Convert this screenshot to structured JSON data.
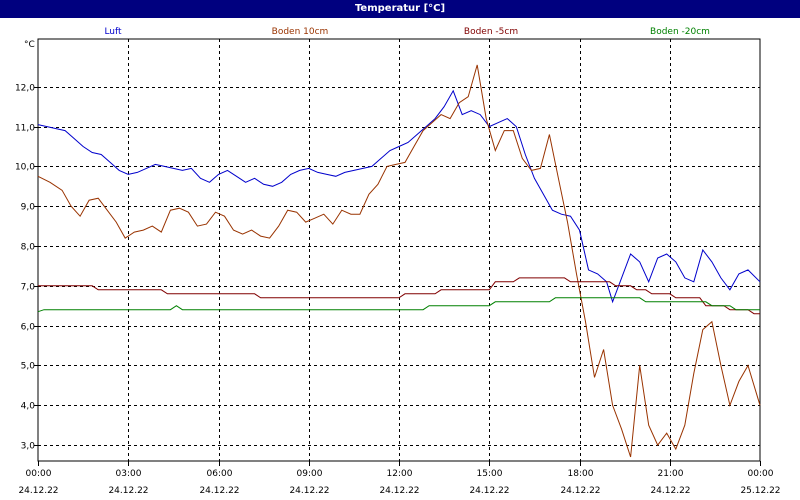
{
  "window": {
    "title": "Temperatur [°C]"
  },
  "chart_data": {
    "type": "line",
    "title": "Temperatur [°C]",
    "ylabel": "°C",
    "xlabel": "",
    "ylim": [
      2.6,
      13.2
    ],
    "xlim": [
      0,
      24
    ],
    "grid": true,
    "legend_placement": "top",
    "y_ticks": [
      {
        "value": 3.0,
        "label": "3,0"
      },
      {
        "value": 4.0,
        "label": "4,0"
      },
      {
        "value": 5.0,
        "label": "5,0"
      },
      {
        "value": 6.0,
        "label": "6,0"
      },
      {
        "value": 7.0,
        "label": "7,0"
      },
      {
        "value": 8.0,
        "label": "8,0"
      },
      {
        "value": 9.0,
        "label": "9,0"
      },
      {
        "value": 10.0,
        "label": "10,0"
      },
      {
        "value": 11.0,
        "label": "11,0"
      },
      {
        "value": 12.0,
        "label": "12,0"
      }
    ],
    "x_ticks": [
      {
        "value": 0,
        "time": "00:00",
        "date": "24.12.22"
      },
      {
        "value": 3,
        "time": "03:00",
        "date": "24.12.22"
      },
      {
        "value": 6,
        "time": "06:00",
        "date": "24.12.22"
      },
      {
        "value": 9,
        "time": "09:00",
        "date": "24.12.22"
      },
      {
        "value": 12,
        "time": "12:00",
        "date": "24.12.22"
      },
      {
        "value": 15,
        "time": "15:00",
        "date": "24.12.22"
      },
      {
        "value": 18,
        "time": "18:00",
        "date": "24.12.22"
      },
      {
        "value": 21,
        "time": "21:00",
        "date": "24.12.22"
      },
      {
        "value": 24,
        "time": "00:00",
        "date": "25.12.22"
      }
    ],
    "series": [
      {
        "name": "Luft",
        "color": "#0000cc",
        "points": [
          [
            0,
            11.05
          ],
          [
            0.3,
            11.0
          ],
          [
            0.6,
            10.95
          ],
          [
            0.9,
            10.9
          ],
          [
            1.2,
            10.7
          ],
          [
            1.5,
            10.5
          ],
          [
            1.8,
            10.35
          ],
          [
            2.1,
            10.3
          ],
          [
            2.4,
            10.1
          ],
          [
            2.7,
            9.9
          ],
          [
            3.0,
            9.8
          ],
          [
            3.3,
            9.85
          ],
          [
            3.6,
            9.95
          ],
          [
            3.9,
            10.05
          ],
          [
            4.2,
            10.0
          ],
          [
            4.5,
            9.95
          ],
          [
            4.8,
            9.9
          ],
          [
            5.1,
            9.95
          ],
          [
            5.4,
            9.7
          ],
          [
            5.7,
            9.6
          ],
          [
            6.0,
            9.8
          ],
          [
            6.3,
            9.9
          ],
          [
            6.6,
            9.75
          ],
          [
            6.9,
            9.6
          ],
          [
            7.2,
            9.7
          ],
          [
            7.5,
            9.55
          ],
          [
            7.8,
            9.5
          ],
          [
            8.1,
            9.6
          ],
          [
            8.4,
            9.8
          ],
          [
            8.7,
            9.9
          ],
          [
            9.0,
            9.95
          ],
          [
            9.3,
            9.85
          ],
          [
            9.6,
            9.8
          ],
          [
            9.9,
            9.75
          ],
          [
            10.2,
            9.85
          ],
          [
            10.5,
            9.9
          ],
          [
            10.8,
            9.95
          ],
          [
            11.1,
            10.0
          ],
          [
            11.4,
            10.2
          ],
          [
            11.7,
            10.4
          ],
          [
            12.0,
            10.5
          ],
          [
            12.3,
            10.6
          ],
          [
            12.6,
            10.8
          ],
          [
            12.9,
            11.0
          ],
          [
            13.2,
            11.2
          ],
          [
            13.5,
            11.5
          ],
          [
            13.8,
            11.9
          ],
          [
            14.1,
            11.3
          ],
          [
            14.4,
            11.4
          ],
          [
            14.7,
            11.3
          ],
          [
            15.0,
            11.0
          ],
          [
            15.3,
            11.1
          ],
          [
            15.6,
            11.2
          ],
          [
            15.9,
            11.0
          ],
          [
            16.2,
            10.3
          ],
          [
            16.5,
            9.7
          ],
          [
            16.8,
            9.3
          ],
          [
            17.1,
            8.9
          ],
          [
            17.4,
            8.8
          ],
          [
            17.7,
            8.75
          ],
          [
            18.0,
            8.4
          ],
          [
            18.3,
            7.4
          ],
          [
            18.6,
            7.3
          ],
          [
            18.9,
            7.1
          ],
          [
            19.1,
            6.6
          ],
          [
            19.4,
            7.2
          ],
          [
            19.7,
            7.8
          ],
          [
            20.0,
            7.6
          ],
          [
            20.3,
            7.1
          ],
          [
            20.6,
            7.7
          ],
          [
            20.9,
            7.8
          ],
          [
            21.2,
            7.6
          ],
          [
            21.5,
            7.2
          ],
          [
            21.8,
            7.1
          ],
          [
            22.1,
            7.9
          ],
          [
            22.4,
            7.6
          ],
          [
            22.7,
            7.2
          ],
          [
            23.0,
            6.9
          ],
          [
            23.3,
            7.3
          ],
          [
            23.6,
            7.4
          ],
          [
            24.0,
            7.1
          ]
        ]
      },
      {
        "name": "Boden 10cm",
        "color": "#993300",
        "points": [
          [
            0,
            9.75
          ],
          [
            0.4,
            9.6
          ],
          [
            0.8,
            9.4
          ],
          [
            1.1,
            9.0
          ],
          [
            1.4,
            8.75
          ],
          [
            1.7,
            9.15
          ],
          [
            2.0,
            9.2
          ],
          [
            2.3,
            8.9
          ],
          [
            2.6,
            8.6
          ],
          [
            2.9,
            8.2
          ],
          [
            3.2,
            8.35
          ],
          [
            3.5,
            8.4
          ],
          [
            3.8,
            8.5
          ],
          [
            4.1,
            8.35
          ],
          [
            4.4,
            8.9
          ],
          [
            4.7,
            8.95
          ],
          [
            5.0,
            8.85
          ],
          [
            5.3,
            8.5
          ],
          [
            5.6,
            8.55
          ],
          [
            5.9,
            8.85
          ],
          [
            6.2,
            8.75
          ],
          [
            6.5,
            8.4
          ],
          [
            6.8,
            8.3
          ],
          [
            7.1,
            8.4
          ],
          [
            7.4,
            8.25
          ],
          [
            7.7,
            8.2
          ],
          [
            8.0,
            8.5
          ],
          [
            8.3,
            8.9
          ],
          [
            8.6,
            8.85
          ],
          [
            8.9,
            8.6
          ],
          [
            9.2,
            8.7
          ],
          [
            9.5,
            8.8
          ],
          [
            9.8,
            8.55
          ],
          [
            10.1,
            8.9
          ],
          [
            10.4,
            8.8
          ],
          [
            10.7,
            8.8
          ],
          [
            11.0,
            9.3
          ],
          [
            11.3,
            9.55
          ],
          [
            11.6,
            10.0
          ],
          [
            11.9,
            10.05
          ],
          [
            12.2,
            10.1
          ],
          [
            12.5,
            10.5
          ],
          [
            12.8,
            10.9
          ],
          [
            13.1,
            11.1
          ],
          [
            13.4,
            11.3
          ],
          [
            13.7,
            11.2
          ],
          [
            14.0,
            11.6
          ],
          [
            14.3,
            11.75
          ],
          [
            14.6,
            12.55
          ],
          [
            14.9,
            11.2
          ],
          [
            15.2,
            10.4
          ],
          [
            15.5,
            10.9
          ],
          [
            15.8,
            10.9
          ],
          [
            16.1,
            10.2
          ],
          [
            16.4,
            9.9
          ],
          [
            16.7,
            9.95
          ],
          [
            17.0,
            10.8
          ],
          [
            17.3,
            9.7
          ],
          [
            17.6,
            8.6
          ],
          [
            17.9,
            7.3
          ],
          [
            18.2,
            6.1
          ],
          [
            18.5,
            4.7
          ],
          [
            18.8,
            5.4
          ],
          [
            19.1,
            4.0
          ],
          [
            19.4,
            3.4
          ],
          [
            19.7,
            2.7
          ],
          [
            20.0,
            5.0
          ],
          [
            20.3,
            3.5
          ],
          [
            20.6,
            3.0
          ],
          [
            20.9,
            3.3
          ],
          [
            21.2,
            2.9
          ],
          [
            21.5,
            3.5
          ],
          [
            21.8,
            4.8
          ],
          [
            22.1,
            5.9
          ],
          [
            22.4,
            6.1
          ],
          [
            22.7,
            5.0
          ],
          [
            23.0,
            4.0
          ],
          [
            23.3,
            4.6
          ],
          [
            23.6,
            5.0
          ],
          [
            24.0,
            4.0
          ]
        ]
      },
      {
        "name": "Boden -5cm",
        "color": "#800000",
        "points": [
          [
            0,
            7.0
          ],
          [
            1.8,
            7.0
          ],
          [
            2.0,
            6.9
          ],
          [
            4.1,
            6.9
          ],
          [
            4.3,
            6.8
          ],
          [
            7.2,
            6.8
          ],
          [
            7.4,
            6.7
          ],
          [
            12.0,
            6.7
          ],
          [
            12.2,
            6.8
          ],
          [
            13.2,
            6.8
          ],
          [
            13.4,
            6.9
          ],
          [
            15.0,
            6.9
          ],
          [
            15.2,
            7.1
          ],
          [
            15.8,
            7.1
          ],
          [
            16.0,
            7.2
          ],
          [
            17.5,
            7.2
          ],
          [
            17.7,
            7.1
          ],
          [
            19.0,
            7.1
          ],
          [
            19.2,
            7.0
          ],
          [
            19.7,
            7.0
          ],
          [
            19.9,
            6.9
          ],
          [
            20.2,
            6.9
          ],
          [
            20.4,
            6.8
          ],
          [
            21.0,
            6.8
          ],
          [
            21.2,
            6.7
          ],
          [
            22.0,
            6.7
          ],
          [
            22.2,
            6.5
          ],
          [
            22.8,
            6.5
          ],
          [
            23.0,
            6.4
          ],
          [
            23.6,
            6.4
          ],
          [
            23.8,
            6.3
          ],
          [
            24.0,
            6.3
          ]
        ]
      },
      {
        "name": "Boden -20cm",
        "color": "#008000",
        "points": [
          [
            0,
            6.35
          ],
          [
            0.2,
            6.4
          ],
          [
            4.4,
            6.4
          ],
          [
            4.6,
            6.5
          ],
          [
            4.8,
            6.4
          ],
          [
            12.8,
            6.4
          ],
          [
            13.0,
            6.5
          ],
          [
            15.0,
            6.5
          ],
          [
            15.2,
            6.6
          ],
          [
            17.0,
            6.6
          ],
          [
            17.2,
            6.7
          ],
          [
            20.0,
            6.7
          ],
          [
            20.2,
            6.6
          ],
          [
            22.2,
            6.6
          ],
          [
            22.4,
            6.5
          ],
          [
            23.0,
            6.5
          ],
          [
            23.2,
            6.4
          ],
          [
            24.0,
            6.4
          ]
        ]
      }
    ]
  }
}
